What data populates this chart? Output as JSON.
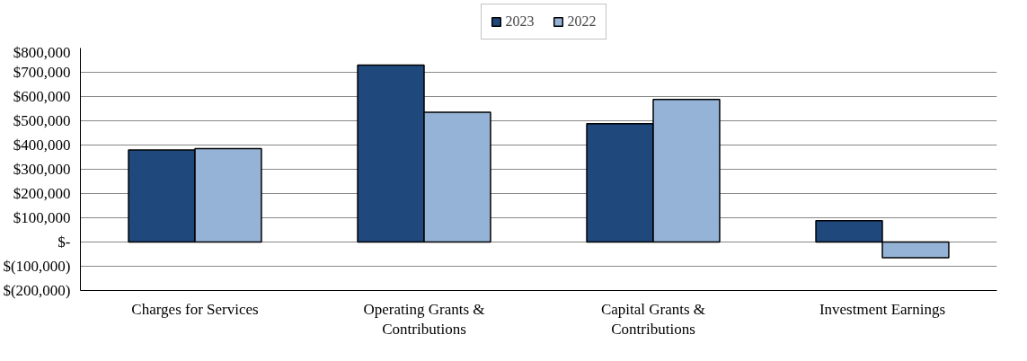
{
  "chart_data": {
    "type": "bar",
    "categories": [
      "Charges for Services",
      "Operating Grants & Contributions",
      "Capital Grants & Contributions",
      "Investment Earnings"
    ],
    "series": [
      {
        "name": "2023",
        "color": "#1f497d",
        "values": [
          380000,
          730000,
          488000,
          88000
        ]
      },
      {
        "name": "2022",
        "color": "#95b3d7",
        "values": [
          385000,
          535000,
          588000,
          -65000
        ]
      }
    ],
    "ylim": [
      -200000,
      800000
    ],
    "yticks": [
      {
        "value": -200000,
        "label": "$(200,000)"
      },
      {
        "value": -100000,
        "label": "$(100,000)"
      },
      {
        "value": 0,
        "label": "$-"
      },
      {
        "value": 100000,
        "label": "$100,000"
      },
      {
        "value": 200000,
        "label": "$200,000"
      },
      {
        "value": 300000,
        "label": "$300,000"
      },
      {
        "value": 400000,
        "label": "$400,000"
      },
      {
        "value": 500000,
        "label": "$500,000"
      },
      {
        "value": 600000,
        "label": "$600,000"
      },
      {
        "value": 700000,
        "label": "$700,000"
      },
      {
        "value": 800000,
        "label": "$800,000"
      }
    ],
    "grid": "y",
    "legend": "top"
  }
}
